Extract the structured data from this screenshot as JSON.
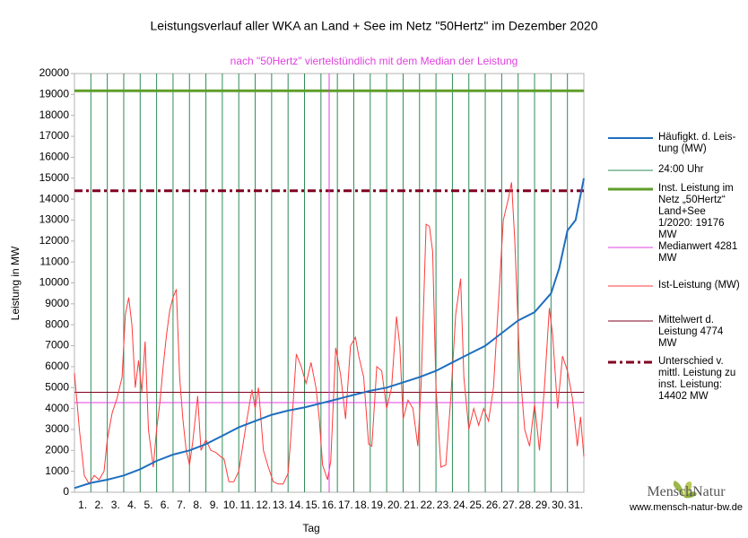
{
  "chart_data": {
    "type": "line",
    "title": "Leistungsverlauf aller WKA an Land + See im Netz \"50Hertz\" im Dezember 2020",
    "subtitle": "nach \"50Hertz\" viertelstündlich mit dem Median der Leistung",
    "y_label": "Leistung in MW",
    "x_label": "Tag",
    "xlim": [
      0,
      31
    ],
    "ylim": [
      0,
      20000
    ],
    "yticks": [
      0,
      1000,
      2000,
      3000,
      4000,
      5000,
      6000,
      7000,
      8000,
      9000,
      10000,
      11000,
      12000,
      13000,
      14000,
      15000,
      16000,
      17000,
      18000,
      19000,
      20000
    ],
    "xticks": [
      {
        "value": 0.5,
        "label": "1."
      },
      {
        "value": 1.5,
        "label": "2."
      },
      {
        "value": 2.5,
        "label": "3."
      },
      {
        "value": 3.5,
        "label": "4."
      },
      {
        "value": 4.5,
        "label": "5."
      },
      {
        "value": 5.5,
        "label": "6."
      },
      {
        "value": 6.5,
        "label": "7."
      },
      {
        "value": 7.5,
        "label": "8."
      },
      {
        "value": 8.5,
        "label": "9."
      },
      {
        "value": 9.5,
        "label": "10."
      },
      {
        "value": 10.5,
        "label": "11."
      },
      {
        "value": 11.5,
        "label": "12."
      },
      {
        "value": 12.5,
        "label": "13."
      },
      {
        "value": 13.5,
        "label": "14."
      },
      {
        "value": 14.5,
        "label": "15."
      },
      {
        "value": 15.5,
        "label": "16."
      },
      {
        "value": 16.5,
        "label": "17."
      },
      {
        "value": 17.5,
        "label": "18."
      },
      {
        "value": 18.5,
        "label": "19."
      },
      {
        "value": 19.5,
        "label": "20."
      },
      {
        "value": 20.5,
        "label": "21."
      },
      {
        "value": 21.5,
        "label": "22."
      },
      {
        "value": 22.5,
        "label": "23."
      },
      {
        "value": 23.5,
        "label": "24."
      },
      {
        "value": 24.5,
        "label": "25."
      },
      {
        "value": 25.5,
        "label": "26."
      },
      {
        "value": 26.5,
        "label": "27."
      },
      {
        "value": 27.5,
        "label": "28."
      },
      {
        "value": 28.5,
        "label": "29."
      },
      {
        "value": 29.5,
        "label": "30."
      },
      {
        "value": 30.5,
        "label": "31."
      }
    ],
    "series": [
      {
        "name": "Häufigkt. d. Leis-tung (MW)",
        "color": "#1f6fbf",
        "width": 2,
        "x": [
          0,
          1,
          2,
          3,
          4,
          5,
          6,
          7,
          8,
          9,
          10,
          11,
          12,
          13,
          14,
          15,
          16,
          17,
          18,
          19,
          20,
          21,
          22,
          23,
          24,
          25,
          26,
          27,
          28,
          29,
          29.5,
          30,
          30.5,
          31
        ],
        "values": [
          200,
          450,
          600,
          800,
          1100,
          1500,
          1800,
          2000,
          2300,
          2700,
          3100,
          3400,
          3700,
          3900,
          4050,
          4250,
          4450,
          4650,
          4850,
          5000,
          5250,
          5500,
          5800,
          6200,
          6600,
          7000,
          7600,
          8200,
          8600,
          9500,
          10700,
          12500,
          13000,
          15000
        ]
      },
      {
        "name": "24:00 Uhr",
        "color": "#2e8b57",
        "style": "vlines",
        "x": [
          1,
          2,
          3,
          4,
          5,
          6,
          7,
          8,
          9,
          10,
          11,
          12,
          13,
          14,
          15,
          16,
          17,
          18,
          19,
          20,
          21,
          22,
          23,
          24,
          25,
          26,
          27,
          28,
          29,
          30
        ]
      },
      {
        "name": "Inst. Leistung im Netz „50Hertz“ Land+See 1/2020: 19176 MW",
        "color": "#5e9e2a",
        "style": "hline",
        "width": 3,
        "value": 19176
      },
      {
        "name": "Medianwert 4281 MW",
        "color": "#e040e0",
        "style": "hline",
        "width": 1,
        "value": 4281,
        "x": 15.5
      },
      {
        "name": "Ist-Leistung (MW)",
        "color": "#ff3b3b",
        "width": 1,
        "x": [
          0,
          0.3,
          0.6,
          0.9,
          1.2,
          1.5,
          1.8,
          2.0,
          2.3,
          2.6,
          2.9,
          3.1,
          3.3,
          3.5,
          3.7,
          3.9,
          4.1,
          4.3,
          4.5,
          4.8,
          5.0,
          5.2,
          5.4,
          5.6,
          5.8,
          6.0,
          6.2,
          6.4,
          6.6,
          6.8,
          7.0,
          7.2,
          7.5,
          7.7,
          8.0,
          8.3,
          8.6,
          8.9,
          9.1,
          9.4,
          9.7,
          10.0,
          10.2,
          10.5,
          10.8,
          11.0,
          11.2,
          11.5,
          11.8,
          12.1,
          12.4,
          12.7,
          13.0,
          13.2,
          13.5,
          13.8,
          14.1,
          14.4,
          14.7,
          14.9,
          15.1,
          15.4,
          15.6,
          15.9,
          16.2,
          16.5,
          16.8,
          17.1,
          17.3,
          17.6,
          17.9,
          18.1,
          18.4,
          18.7,
          19.0,
          19.3,
          19.6,
          19.8,
          20.0,
          20.3,
          20.6,
          20.9,
          21.1,
          21.4,
          21.6,
          21.8,
          22.0,
          22.3,
          22.6,
          22.9,
          23.2,
          23.5,
          23.7,
          24.0,
          24.3,
          24.6,
          24.9,
          25.2,
          25.5,
          25.8,
          26.1,
          26.4,
          26.6,
          26.8,
          27.1,
          27.4,
          27.7,
          28.0,
          28.3,
          28.6,
          28.9,
          29.1,
          29.4,
          29.7,
          30.0,
          30.3,
          30.6,
          30.8,
          31.0
        ],
        "values": [
          5700,
          3000,
          800,
          400,
          800,
          600,
          1000,
          2500,
          3800,
          4500,
          5500,
          8500,
          9300,
          8000,
          5000,
          6300,
          4800,
          7200,
          3000,
          1200,
          3000,
          4300,
          6000,
          7500,
          8700,
          9300,
          9700,
          5500,
          3500,
          2000,
          1300,
          2400,
          4600,
          2000,
          2500,
          2000,
          1900,
          1700,
          1600,
          500,
          500,
          1000,
          2000,
          3500,
          4900,
          4000,
          5000,
          2000,
          1200,
          500,
          400,
          400,
          900,
          3000,
          6600,
          6000,
          5200,
          6200,
          5000,
          3500,
          1300,
          600,
          1500,
          6900,
          5600,
          3500,
          7000,
          7400,
          6500,
          5500,
          2300,
          2200,
          6000,
          5800,
          4000,
          5000,
          8400,
          7000,
          3500,
          4400,
          4000,
          2200,
          5200,
          12800,
          12700,
          11500,
          5000,
          1200,
          1300,
          4500,
          8500,
          10200,
          5500,
          3000,
          4000,
          3200,
          4000,
          3400,
          5000,
          9000,
          13000,
          14000,
          14800,
          12000,
          6000,
          3000,
          2200,
          4200,
          2000,
          5000,
          8800,
          7500,
          4000,
          6500,
          5800,
          4500,
          2200,
          3600,
          1700
        ]
      },
      {
        "name": "Mittelwert d. Leistung 4774 MW",
        "color": "#800020",
        "style": "hline",
        "width": 1,
        "value": 4774
      },
      {
        "name": "Unterschied v. mittl. Leistung zu inst. Leistung: 14402 MW",
        "color": "#800020",
        "style": "hline",
        "width": 3,
        "dash": true,
        "value": 14402
      }
    ]
  },
  "logo": {
    "text": "MenschNatur",
    "url": "www.mensch-natur-bw.de"
  }
}
